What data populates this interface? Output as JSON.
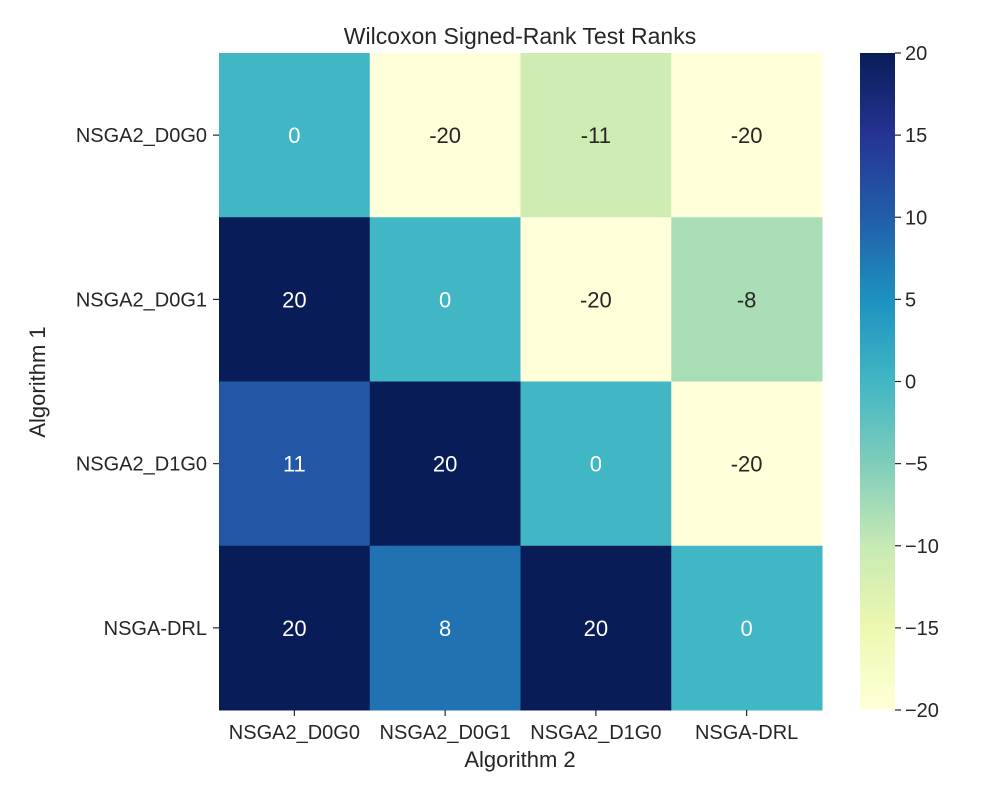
{
  "chart_data": {
    "type": "heatmap",
    "title": "Wilcoxon Signed-Rank Test Ranks",
    "xlabel": "Algorithm 2",
    "ylabel": "Algorithm 1",
    "x_categories": [
      "NSGA2_D0G0",
      "NSGA2_D0G1",
      "NSGA2_D1G0",
      "NSGA-DRL"
    ],
    "y_categories": [
      "NSGA2_D0G0",
      "NSGA2_D0G1",
      "NSGA2_D1G0",
      "NSGA-DRL"
    ],
    "values": [
      [
        0,
        -20,
        -11,
        -20
      ],
      [
        20,
        0,
        -20,
        -8
      ],
      [
        11,
        20,
        0,
        -20
      ],
      [
        20,
        8,
        20,
        0
      ]
    ],
    "value_labels": [
      [
        "0",
        "-20",
        "-11",
        "-20"
      ],
      [
        "20",
        "0",
        "-20",
        "-8"
      ],
      [
        "11",
        "20",
        "0",
        "-20"
      ],
      [
        "20",
        "8",
        "20",
        "0"
      ]
    ],
    "vmin": -20,
    "vmax": 20,
    "colormap": "YlGnBu",
    "colorbar": {
      "ticks": [
        20,
        15,
        10,
        5,
        0,
        -5,
        -10,
        -15,
        -20
      ],
      "tick_labels": [
        "20",
        "15",
        "10",
        "5",
        "0",
        "−5",
        "−10",
        "−15",
        "−20"
      ]
    }
  }
}
